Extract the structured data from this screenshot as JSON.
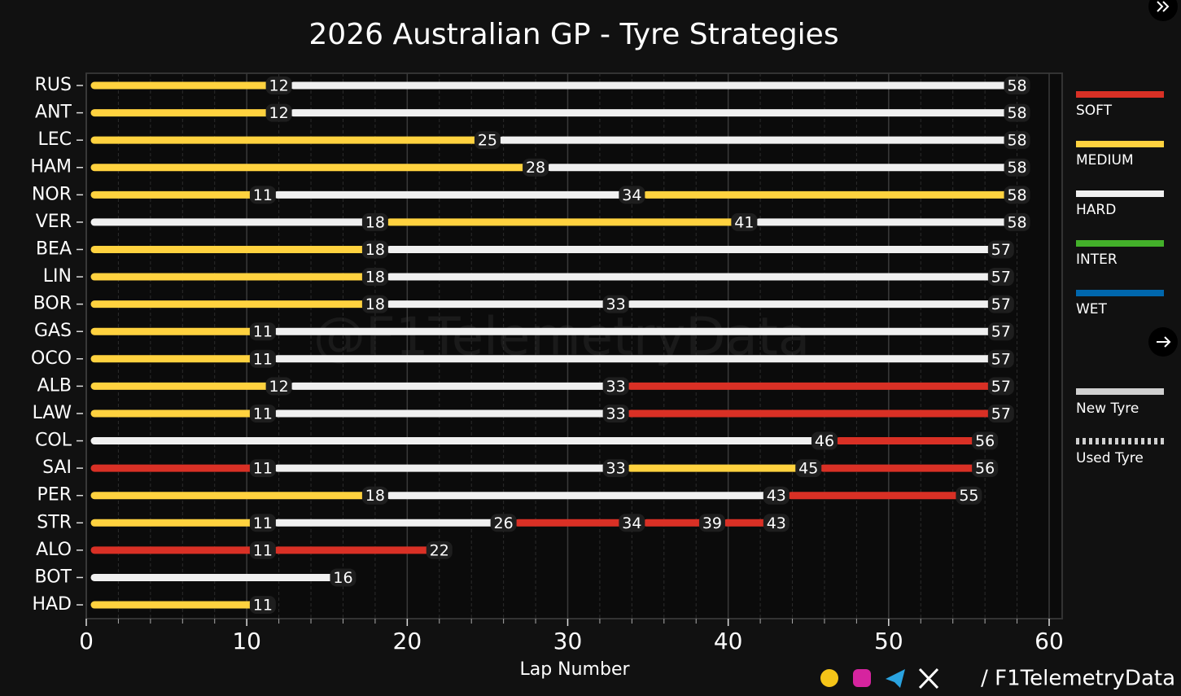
{
  "chart_data": {
    "type": "timeline",
    "title": "2026 Australian GP - Tyre Strategies",
    "x_label": "Lap Number",
    "xlim": [
      0,
      60
    ],
    "xticks": [
      0,
      10,
      20,
      30,
      40,
      50,
      60
    ],
    "minor_xticks": [
      2,
      4,
      6,
      8,
      12,
      14,
      16,
      18,
      22,
      24,
      26,
      28,
      32,
      34,
      36,
      38,
      42,
      44,
      46,
      48,
      52,
      54,
      56,
      58
    ],
    "grid": true,
    "compounds": [
      {
        "name": "SOFT",
        "color": "#d93025"
      },
      {
        "name": "MEDIUM",
        "color": "#ffd23f"
      },
      {
        "name": "HARD",
        "color": "#f0f0f0"
      },
      {
        "name": "INTER",
        "color": "#43b02a"
      },
      {
        "name": "WET",
        "color": "#0067ad"
      }
    ],
    "tyre_age_legend": [
      {
        "name": "New Tyre"
      },
      {
        "name": "Used Tyre"
      }
    ],
    "drivers": [
      {
        "name": "RUS",
        "stints": [
          {
            "compound": "MEDIUM",
            "end": 12
          },
          {
            "compound": "HARD",
            "end": 58
          }
        ]
      },
      {
        "name": "ANT",
        "stints": [
          {
            "compound": "MEDIUM",
            "end": 12
          },
          {
            "compound": "HARD",
            "end": 58
          }
        ]
      },
      {
        "name": "LEC",
        "stints": [
          {
            "compound": "MEDIUM",
            "end": 25
          },
          {
            "compound": "HARD",
            "end": 58
          }
        ]
      },
      {
        "name": "HAM",
        "stints": [
          {
            "compound": "MEDIUM",
            "end": 28
          },
          {
            "compound": "HARD",
            "end": 58
          }
        ]
      },
      {
        "name": "NOR",
        "stints": [
          {
            "compound": "MEDIUM",
            "end": 11
          },
          {
            "compound": "HARD",
            "end": 34
          },
          {
            "compound": "MEDIUM",
            "end": 58
          }
        ]
      },
      {
        "name": "VER",
        "stints": [
          {
            "compound": "HARD",
            "end": 18
          },
          {
            "compound": "MEDIUM",
            "end": 41
          },
          {
            "compound": "HARD",
            "end": 58
          }
        ]
      },
      {
        "name": "BEA",
        "stints": [
          {
            "compound": "MEDIUM",
            "end": 18
          },
          {
            "compound": "HARD",
            "end": 57
          }
        ]
      },
      {
        "name": "LIN",
        "stints": [
          {
            "compound": "MEDIUM",
            "end": 18
          },
          {
            "compound": "HARD",
            "end": 57
          }
        ]
      },
      {
        "name": "BOR",
        "stints": [
          {
            "compound": "MEDIUM",
            "end": 18
          },
          {
            "compound": "HARD",
            "end": 33
          },
          {
            "compound": "HARD",
            "end": 57
          }
        ]
      },
      {
        "name": "GAS",
        "stints": [
          {
            "compound": "MEDIUM",
            "end": 11
          },
          {
            "compound": "HARD",
            "end": 57
          }
        ]
      },
      {
        "name": "OCO",
        "stints": [
          {
            "compound": "MEDIUM",
            "end": 11
          },
          {
            "compound": "HARD",
            "end": 57
          }
        ]
      },
      {
        "name": "ALB",
        "stints": [
          {
            "compound": "MEDIUM",
            "end": 12
          },
          {
            "compound": "HARD",
            "end": 33
          },
          {
            "compound": "SOFT",
            "end": 57
          }
        ]
      },
      {
        "name": "LAW",
        "stints": [
          {
            "compound": "MEDIUM",
            "end": 11
          },
          {
            "compound": "HARD",
            "end": 33
          },
          {
            "compound": "SOFT",
            "end": 57
          }
        ]
      },
      {
        "name": "COL",
        "stints": [
          {
            "compound": "HARD",
            "end": 46
          },
          {
            "compound": "SOFT",
            "end": 56
          }
        ]
      },
      {
        "name": "SAI",
        "stints": [
          {
            "compound": "SOFT",
            "end": 11
          },
          {
            "compound": "HARD",
            "end": 33
          },
          {
            "compound": "MEDIUM",
            "end": 45
          },
          {
            "compound": "SOFT",
            "end": 56
          }
        ]
      },
      {
        "name": "PER",
        "stints": [
          {
            "compound": "MEDIUM",
            "end": 18
          },
          {
            "compound": "HARD",
            "end": 43
          },
          {
            "compound": "SOFT",
            "end": 55
          }
        ]
      },
      {
        "name": "STR",
        "stints": [
          {
            "compound": "MEDIUM",
            "end": 11
          },
          {
            "compound": "HARD",
            "end": 26
          },
          {
            "compound": "SOFT",
            "end": 34
          },
          {
            "compound": "SOFT",
            "end": 39
          },
          {
            "compound": "SOFT",
            "end": 43
          }
        ]
      },
      {
        "name": "ALO",
        "stints": [
          {
            "compound": "SOFT",
            "end": 11
          },
          {
            "compound": "SOFT",
            "end": 22
          }
        ]
      },
      {
        "name": "BOT",
        "stints": [
          {
            "compound": "HARD",
            "end": 16
          }
        ]
      },
      {
        "name": "HAD",
        "stints": [
          {
            "compound": "MEDIUM",
            "end": 11
          }
        ]
      }
    ]
  },
  "watermark": "@F1TelemetryData",
  "footer": "/ F1TelemetryData"
}
